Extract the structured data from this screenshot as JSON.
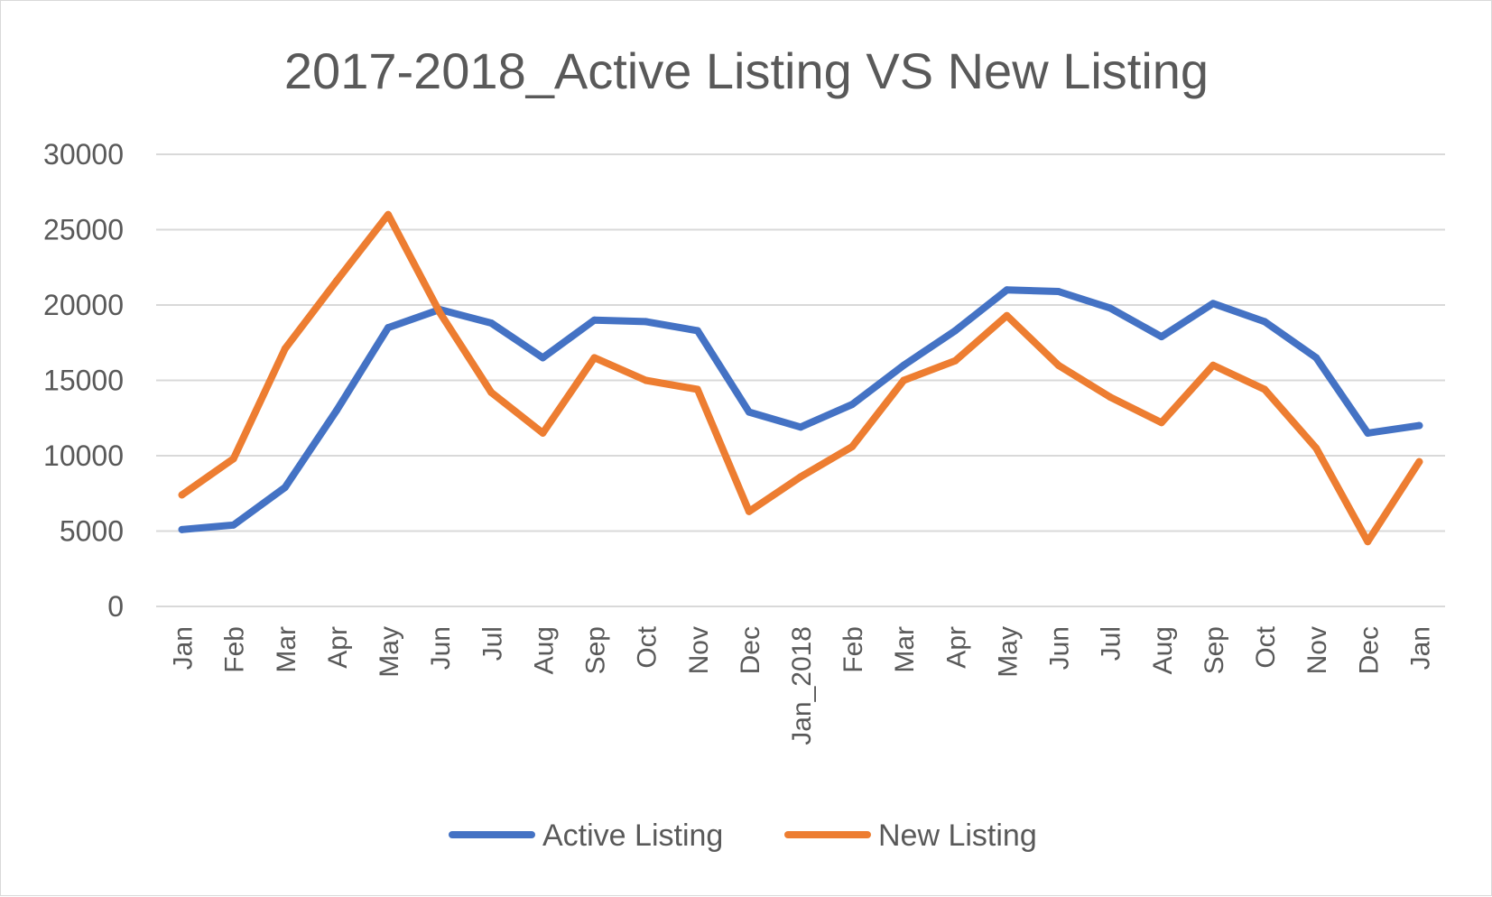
{
  "chart_data": {
    "type": "line",
    "title": "2017-2018_Active Listing VS New Listing",
    "xlabel": "",
    "ylabel": "",
    "categories": [
      "Jan",
      "Feb",
      "Mar",
      "Apr",
      "May",
      "Jun",
      "Jul",
      "Aug",
      "Sep",
      "Oct",
      "Nov",
      "Dec",
      "Jan_2018",
      "Feb",
      "Mar",
      "Apr",
      "May",
      "Jun",
      "Jul",
      "Aug",
      "Sep",
      "Oct",
      "Nov",
      "Dec",
      "Jan"
    ],
    "ylim": [
      0,
      30000
    ],
    "yticks": [
      "0",
      "5000",
      "10000",
      "15000",
      "20000",
      "25000",
      "30000"
    ],
    "grid": true,
    "legend": "bottom",
    "series": [
      {
        "name": "Active Listing",
        "color": "#4472C4",
        "values": [
          5100,
          5400,
          7900,
          13000,
          18500,
          19700,
          18800,
          16500,
          19000,
          18900,
          18300,
          12900,
          11900,
          13400,
          16000,
          18300,
          21000,
          20900,
          19800,
          17900,
          20100,
          18900,
          16500,
          11500,
          12000
        ]
      },
      {
        "name": "New Listing",
        "color": "#ED7D31",
        "values": [
          7400,
          9800,
          17100,
          21600,
          26000,
          19500,
          14200,
          11500,
          16500,
          15000,
          14400,
          6300,
          8600,
          10600,
          15000,
          16300,
          19300,
          16000,
          13900,
          12200,
          16000,
          14400,
          10500,
          4300,
          9600
        ]
      }
    ]
  }
}
